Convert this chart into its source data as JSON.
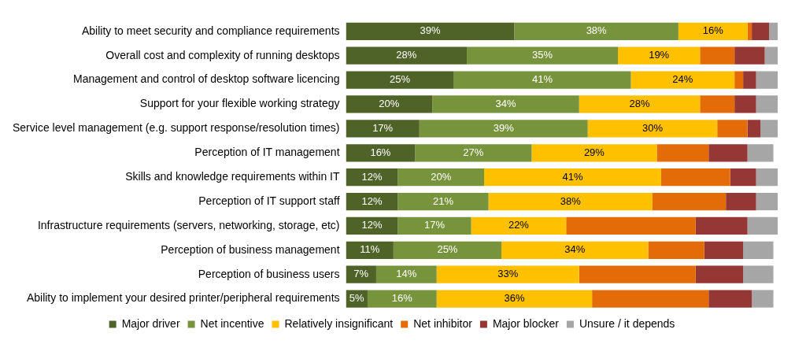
{
  "chart_data": {
    "type": "bar",
    "orientation": "horizontal",
    "stacked": true,
    "categories": [
      "Ability to meet security and compliance requirements",
      "Overall cost and complexity of running desktops",
      "Management and control of desktop software licencing",
      "Support for your flexible working strategy",
      "Service level management (e.g. support response/resolution times)",
      "Perception of IT management",
      "Skills and knowledge requirements within IT",
      "Perception of IT support staff",
      "Infrastructure requirements (servers, networking, storage, etc)",
      "Perception of business management",
      "Perception of business users",
      "Ability to implement your desired printer/peripheral requirements"
    ],
    "xlim": [
      0,
      100
    ],
    "tick_labels": "y",
    "grid": false,
    "legend": "bottom",
    "series": [
      {
        "name": "Major driver",
        "color": "#4f6228",
        "values": [
          39,
          28,
          25,
          20,
          17,
          16,
          12,
          12,
          12,
          11,
          7,
          5
        ],
        "value_labels": [
          "39%",
          "28%",
          "25%",
          "20%",
          "17%",
          "16%",
          "12%",
          "12%",
          "12%",
          "11%",
          "7%",
          "5%"
        ]
      },
      {
        "name": "Net incentive",
        "color": "#77933c",
        "values": [
          38,
          35,
          41,
          34,
          39,
          27,
          20,
          21,
          17,
          25,
          14,
          16
        ],
        "value_labels": [
          "38%",
          "35%",
          "41%",
          "34%",
          "39%",
          "27%",
          "20%",
          "21%",
          "17%",
          "25%",
          "14%",
          "16%"
        ]
      },
      {
        "name": "Relatively insignificant",
        "color": "#ffc000",
        "values": [
          16,
          19,
          24,
          28,
          30,
          29,
          41,
          38,
          22,
          34,
          33,
          36
        ],
        "value_labels": [
          "16%",
          "19%",
          "24%",
          "28%",
          "30%",
          "29%",
          "41%",
          "38%",
          "22%",
          "34%",
          "33%",
          "36%"
        ]
      },
      {
        "name": "Net inhibitor",
        "color": "#e36c09",
        "values": [
          1,
          8,
          2,
          8,
          7,
          12,
          16,
          17,
          30,
          13,
          27,
          27
        ]
      },
      {
        "name": "Major blocker",
        "color": "#953735",
        "values": [
          4,
          7,
          3,
          5,
          3,
          9,
          6,
          7,
          12,
          9,
          11,
          10
        ]
      },
      {
        "name": "Unsure / it depends",
        "color": "#a6a6a6",
        "values": [
          2,
          3,
          5,
          5,
          4,
          6,
          5,
          5,
          7,
          7,
          7,
          5
        ]
      }
    ]
  }
}
